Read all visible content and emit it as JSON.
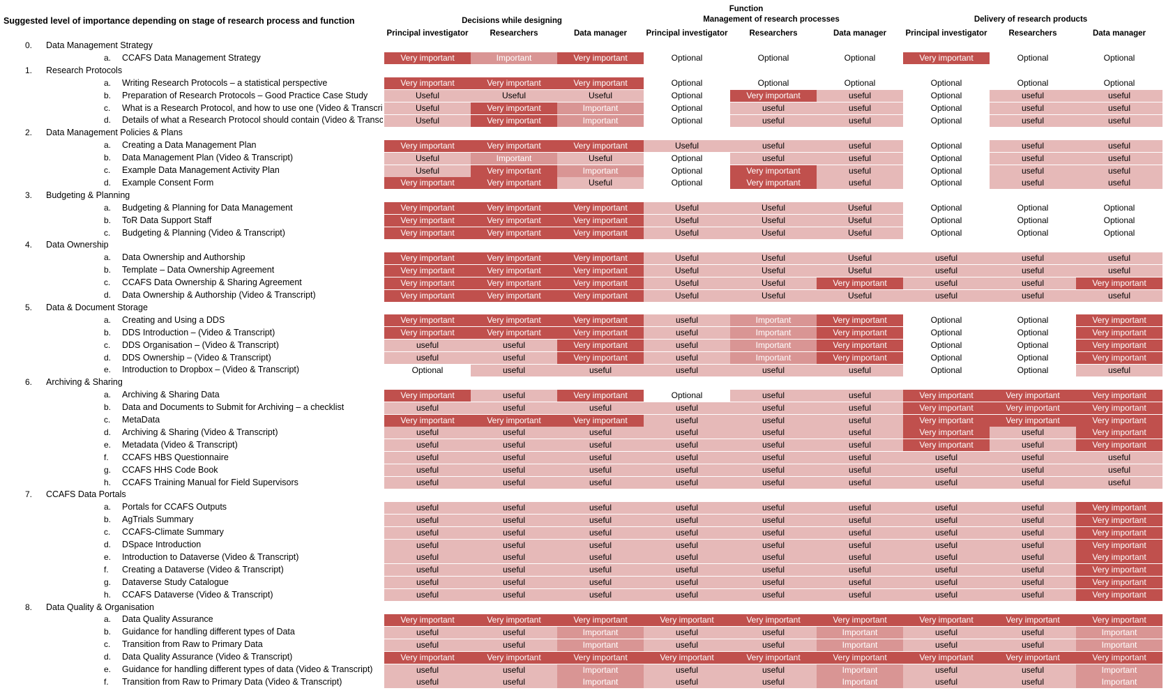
{
  "title": "Suggested level of importance depending on stage of research process and function",
  "header": {
    "function_label": "Function",
    "groups": [
      "Decisions while designing",
      "Management of research processes",
      "Delivery of research products"
    ],
    "columns": [
      "Principal investigator",
      "Researchers",
      "Data manager",
      "Principal investigator",
      "Researchers",
      "Data manager",
      "Principal investigator",
      "Researchers",
      "Data manager"
    ]
  },
  "colors": {
    "very_important": "#c0504d",
    "important": "#d99594",
    "useful": "#e6b9b8",
    "optional": "#ffffff"
  },
  "sections": [
    {
      "num": "0.",
      "label": "Data Management Strategy",
      "items": [
        {
          "letter": "a.",
          "label": "CCAFS Data Management Strategy",
          "values": [
            "Very important",
            "Important",
            "Very important",
            "Optional",
            "Optional",
            "Optional",
            "Very important",
            "Optional",
            "Optional"
          ]
        }
      ]
    },
    {
      "num": "1.",
      "label": "Research Protocols",
      "items": [
        {
          "letter": "a.",
          "label": "Writing Research Protocols – a statistical perspective",
          "values": [
            "Very important",
            "Very important",
            "Very important",
            "Optional",
            "Optional",
            "Optional",
            "Optional",
            "Optional",
            "Optional"
          ]
        },
        {
          "letter": "b.",
          "label": "Preparation of Research Protocols – Good Practice Case Study",
          "values": [
            "Useful",
            "Useful",
            "Useful",
            "Optional",
            "Very important",
            "useful",
            "Optional",
            "useful",
            "useful"
          ]
        },
        {
          "letter": "c.",
          "label": "What is a Research Protocol, and how to use one (Video & Transcript",
          "values": [
            "Useful",
            "Very important",
            "Important",
            "Optional",
            "useful",
            "useful",
            "Optional",
            "useful",
            "useful"
          ]
        },
        {
          "letter": "d.",
          "label": "Details of what a Research Protocol should contain (Video & Transcri",
          "values": [
            "Useful",
            "Very important",
            "Important",
            "Optional",
            "useful",
            "useful",
            "Optional",
            "useful",
            "useful"
          ]
        }
      ]
    },
    {
      "num": "2.",
      "label": "Data Management Policies & Plans",
      "items": [
        {
          "letter": "a.",
          "label": "Creating a Data Management Plan",
          "values": [
            "Very important",
            "Very important",
            "Very important",
            "Useful",
            "useful",
            "useful",
            "Optional",
            "useful",
            "useful"
          ]
        },
        {
          "letter": "b.",
          "label": "Data Management Plan (Video & Transcript)",
          "values": [
            "Useful",
            "Important",
            "Useful",
            "Optional",
            "useful",
            "useful",
            "Optional",
            "useful",
            "useful"
          ]
        },
        {
          "letter": "c.",
          "label": "Example Data Management Activity Plan",
          "values": [
            "Useful",
            "Very important",
            "Important",
            "Optional",
            "Very important",
            "useful",
            "Optional",
            "useful",
            "useful"
          ]
        },
        {
          "letter": "d.",
          "label": "Example Consent Form",
          "values": [
            "Very important",
            "Very important",
            "Useful",
            "Optional",
            "Very important",
            "useful",
            "Optional",
            "useful",
            "useful"
          ]
        }
      ]
    },
    {
      "num": "3.",
      "label": "Budgeting & Planning",
      "items": [
        {
          "letter": "a.",
          "label": "Budgeting & Planning for Data Management",
          "values": [
            "Very important",
            "Very important",
            "Very important",
            "Useful",
            "Useful",
            "Useful",
            "Optional",
            "Optional",
            "Optional"
          ]
        },
        {
          "letter": "b.",
          "label": "ToR Data Support Staff",
          "values": [
            "Very important",
            "Very important",
            "Very important",
            "Useful",
            "Useful",
            "Useful",
            "Optional",
            "Optional",
            "Optional"
          ]
        },
        {
          "letter": "c.",
          "label": "Budgeting & Planning (Video & Transcript)",
          "values": [
            "Very important",
            "Very important",
            "Very important",
            "Useful",
            "Useful",
            "Useful",
            "Optional",
            "Optional",
            "Optional"
          ]
        }
      ]
    },
    {
      "num": "4.",
      "label": "Data Ownership",
      "items": [
        {
          "letter": "a.",
          "label": "Data Ownership and Authorship",
          "values": [
            "Very important",
            "Very important",
            "Very important",
            "Useful",
            "Useful",
            "Useful",
            "useful",
            "useful",
            "useful"
          ]
        },
        {
          "letter": "b.",
          "label": "Template – Data Ownership Agreement",
          "values": [
            "Very important",
            "Very important",
            "Very important",
            "Useful",
            "Useful",
            "Useful",
            "useful",
            "useful",
            "useful"
          ]
        },
        {
          "letter": "c.",
          "label": "CCAFS Data Ownership & Sharing Agreement",
          "values": [
            "Very important",
            "Very important",
            "Very important",
            "Useful",
            "Useful",
            "Very important",
            "useful",
            "useful",
            "Very important"
          ]
        },
        {
          "letter": "d.",
          "label": "Data Ownership & Authorship (Video & Transcript)",
          "values": [
            "Very important",
            "Very important",
            "Very important",
            "Useful",
            "Useful",
            "Useful",
            "useful",
            "useful",
            "useful"
          ]
        }
      ]
    },
    {
      "num": "5.",
      "label": "Data & Document Storage",
      "items": [
        {
          "letter": "a.",
          "label": "Creating and Using a DDS",
          "values": [
            "Very important",
            "Very important",
            "Very important",
            "useful",
            "Important",
            "Very important",
            "Optional",
            "Optional",
            "Very important"
          ]
        },
        {
          "letter": "b.",
          "label": "DDS Introduction – (Video & Transcript)",
          "values": [
            "Very important",
            "Very important",
            "Very important",
            "useful",
            "Important",
            "Very important",
            "Optional",
            "Optional",
            "Very important"
          ]
        },
        {
          "letter": "c.",
          "label": "DDS Organisation – (Video & Transcript)",
          "values": [
            "useful",
            "useful",
            "Very important",
            "useful",
            "Important",
            "Very important",
            "Optional",
            "Optional",
            "Very important"
          ]
        },
        {
          "letter": "d.",
          "label": "DDS Ownership – (Video & Transcript)",
          "values": [
            "useful",
            "useful",
            "Very important",
            "useful",
            "Important",
            "Very important",
            "Optional",
            "Optional",
            "Very important"
          ]
        },
        {
          "letter": "e.",
          "label": "Introduction to Dropbox – (Video & Transcript)",
          "values": [
            "Optional",
            "useful",
            "useful",
            "useful",
            "useful",
            "useful",
            "Optional",
            "Optional",
            "useful"
          ]
        }
      ]
    },
    {
      "num": "6.",
      "label": "Archiving & Sharing",
      "items": [
        {
          "letter": "a.",
          "label": "Archiving & Sharing Data",
          "values": [
            "Very important",
            "useful",
            "Very important",
            "Optional",
            "useful",
            "useful",
            "Very important",
            "Very important",
            "Very important"
          ]
        },
        {
          "letter": "b.",
          "label": "Data and Documents to Submit for Archiving – a checklist",
          "values": [
            "useful",
            "useful",
            "useful",
            "useful",
            "useful",
            "useful",
            "Very important",
            "Very important",
            "Very important"
          ]
        },
        {
          "letter": "c.",
          "label": "MetaData",
          "values": [
            "Very important",
            "Very important",
            "Very important",
            "useful",
            "useful",
            "useful",
            "Very important",
            "Very important",
            "Very important"
          ]
        },
        {
          "letter": "d.",
          "label": "Archiving & Sharing (Video & Transcript)",
          "values": [
            "useful",
            "useful",
            "useful",
            "useful",
            "useful",
            "useful",
            "Very important",
            "useful",
            "Very important"
          ]
        },
        {
          "letter": "e.",
          "label": "Metadata (Video & Transcript)",
          "values": [
            "useful",
            "useful",
            "useful",
            "useful",
            "useful",
            "useful",
            "Very important",
            "useful",
            "Very important"
          ]
        },
        {
          "letter": "f.",
          "label": "CCAFS HBS Questionnaire",
          "values": [
            "useful",
            "useful",
            "useful",
            "useful",
            "useful",
            "useful",
            "useful",
            "useful",
            "useful"
          ]
        },
        {
          "letter": "g.",
          "label": "CCAFS HHS Code Book",
          "values": [
            "useful",
            "useful",
            "useful",
            "useful",
            "useful",
            "useful",
            "useful",
            "useful",
            "useful"
          ]
        },
        {
          "letter": "h.",
          "label": "CCAFS Training Manual for Field Supervisors",
          "values": [
            "useful",
            "useful",
            "useful",
            "useful",
            "useful",
            "useful",
            "useful",
            "useful",
            "useful"
          ]
        }
      ]
    },
    {
      "num": "7.",
      "label": "CCAFS Data Portals",
      "items": [
        {
          "letter": "a.",
          "label": "Portals for CCAFS Outputs",
          "values": [
            "useful",
            "useful",
            "useful",
            "useful",
            "useful",
            "useful",
            "useful",
            "useful",
            "Very important"
          ]
        },
        {
          "letter": "b.",
          "label": "AgTrials Summary",
          "values": [
            "useful",
            "useful",
            "useful",
            "useful",
            "useful",
            "useful",
            "useful",
            "useful",
            "Very important"
          ]
        },
        {
          "letter": "c.",
          "label": "CCAFS-Climate Summary",
          "values": [
            "useful",
            "useful",
            "useful",
            "useful",
            "useful",
            "useful",
            "useful",
            "useful",
            "Very important"
          ]
        },
        {
          "letter": "d.",
          "label": "DSpace Introduction",
          "values": [
            "useful",
            "useful",
            "useful",
            "useful",
            "useful",
            "useful",
            "useful",
            "useful",
            "Very important"
          ]
        },
        {
          "letter": "e.",
          "label": "Introduction to Dataverse (Video & Transcript)",
          "values": [
            "useful",
            "useful",
            "useful",
            "useful",
            "useful",
            "useful",
            "useful",
            "useful",
            "Very important"
          ]
        },
        {
          "letter": "f.",
          "label": "Creating a Dataverse (Video & Transcript)",
          "values": [
            "useful",
            "useful",
            "useful",
            "useful",
            "useful",
            "useful",
            "useful",
            "useful",
            "Very important"
          ]
        },
        {
          "letter": "g.",
          "label": "Dataverse Study Catalogue",
          "values": [
            "useful",
            "useful",
            "useful",
            "useful",
            "useful",
            "useful",
            "useful",
            "useful",
            "Very important"
          ]
        },
        {
          "letter": "h.",
          "label": "CCAFS Dataverse (Video & Transcript)",
          "values": [
            "useful",
            "useful",
            "useful",
            "useful",
            "useful",
            "useful",
            "useful",
            "useful",
            "Very important"
          ]
        }
      ]
    },
    {
      "num": "8.",
      "label": "Data Quality & Organisation",
      "items": [
        {
          "letter": "a.",
          "label": "Data Quality Assurance",
          "values": [
            "Very important",
            "Very important",
            "Very important",
            "Very important",
            "Very important",
            "Very important",
            "Very important",
            "Very important",
            "Very important"
          ]
        },
        {
          "letter": "b.",
          "label": "Guidance for handling different types of Data",
          "values": [
            "useful",
            "useful",
            "Important",
            "useful",
            "useful",
            "Important",
            "useful",
            "useful",
            "Important"
          ]
        },
        {
          "letter": "c.",
          "label": "Transition from Raw to Primary Data",
          "values": [
            "useful",
            "useful",
            "Important",
            "useful",
            "useful",
            "Important",
            "useful",
            "useful",
            "Important"
          ]
        },
        {
          "letter": "d.",
          "label": "Data Quality Assurance (Video & Transcript)",
          "values": [
            "Very important",
            "Very important",
            "Very important",
            "Very important",
            "Very important",
            "Very important",
            "Very important",
            "Very important",
            "Very important"
          ]
        },
        {
          "letter": "e.",
          "label": "Guidance for handling different types of data (Video & Transcript)",
          "values": [
            "useful",
            "useful",
            "Important",
            "useful",
            "useful",
            "Important",
            "useful",
            "useful",
            "Important"
          ]
        },
        {
          "letter": "f.",
          "label": "Transition from Raw to Primary Data (Video & Transcript)",
          "values": [
            "useful",
            "useful",
            "Important",
            "useful",
            "useful",
            "Important",
            "useful",
            "useful",
            "Important"
          ]
        }
      ]
    }
  ]
}
